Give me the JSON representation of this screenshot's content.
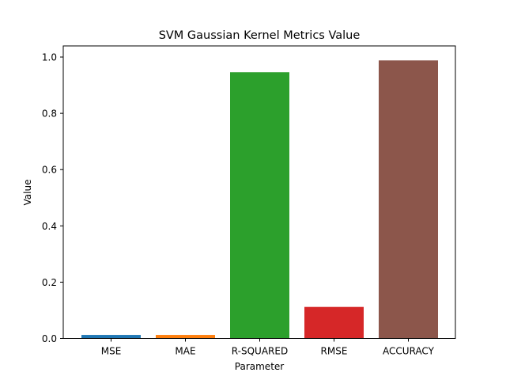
{
  "chart_data": {
    "type": "bar",
    "title": "SVM Gaussian Kernel Metrics Value",
    "xlabel": "Parameter",
    "ylabel": "Value",
    "categories": [
      "MSE",
      "MAE",
      "R-SQUARED",
      "RMSE",
      "ACCURACY"
    ],
    "values": [
      0.0125,
      0.0125,
      0.946,
      0.112,
      0.988
    ],
    "colors": [
      "#1f77b4",
      "#ff7f0e",
      "#2ca02c",
      "#d62728",
      "#8c564b"
    ],
    "ylim": [
      0,
      1.0395
    ],
    "yticks": [
      "0.0",
      "0.2",
      "0.4",
      "0.6",
      "0.8",
      "1.0"
    ],
    "grid": false,
    "legend": "none"
  }
}
